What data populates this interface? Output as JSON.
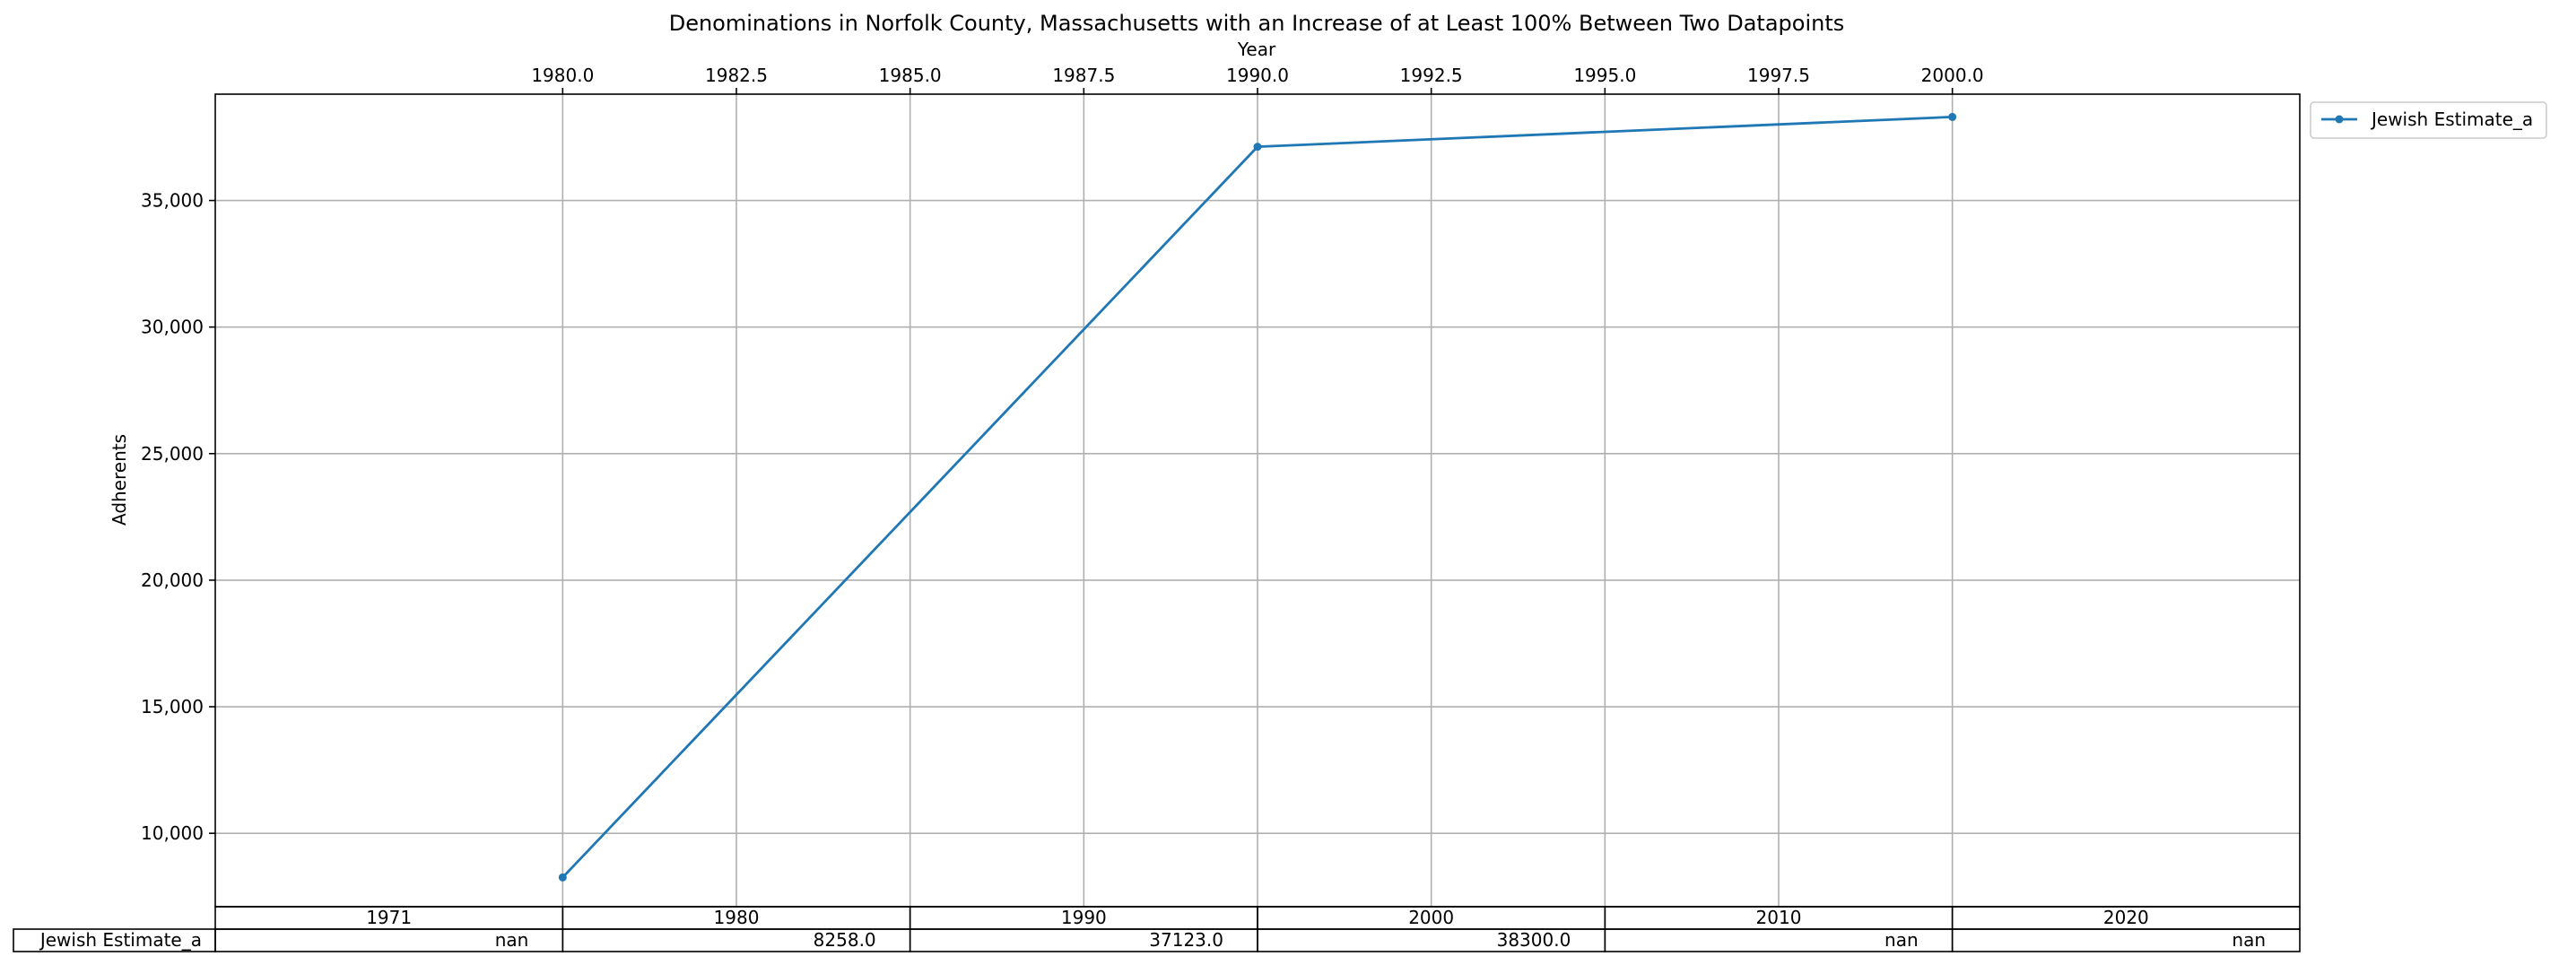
{
  "chart_data": {
    "type": "line",
    "title": "Denominations in Norfolk County, Massachusetts with an Increase of at Least 100% Between Two Datapoints",
    "xlabel": "Year",
    "ylabel": "Adherents",
    "xlim": [
      1975,
      2005
    ],
    "ylim": [
      7100,
      39200
    ],
    "x_ticks": [
      "1980.0",
      "1982.5",
      "1985.0",
      "1987.5",
      "1990.0",
      "1992.5",
      "1995.0",
      "1997.5",
      "2000.0"
    ],
    "y_ticks": [
      "10,000",
      "15,000",
      "20,000",
      "25,000",
      "30,000",
      "35,000"
    ],
    "grid": true,
    "legend_position": "outside-top-right",
    "series": [
      {
        "name": "Jewish Estimate_a",
        "color": "#1f77b4",
        "x": [
          1980,
          1990,
          2000
        ],
        "y": [
          8258,
          37123,
          38300
        ]
      }
    ],
    "table": {
      "columns": [
        "1971",
        "1980",
        "1990",
        "2000",
        "2010",
        "2020"
      ],
      "rows": [
        {
          "label": "Jewish Estimate_a",
          "cells": [
            "nan",
            "8258.0",
            "37123.0",
            "38300.0",
            "nan",
            "nan"
          ]
        }
      ]
    }
  }
}
